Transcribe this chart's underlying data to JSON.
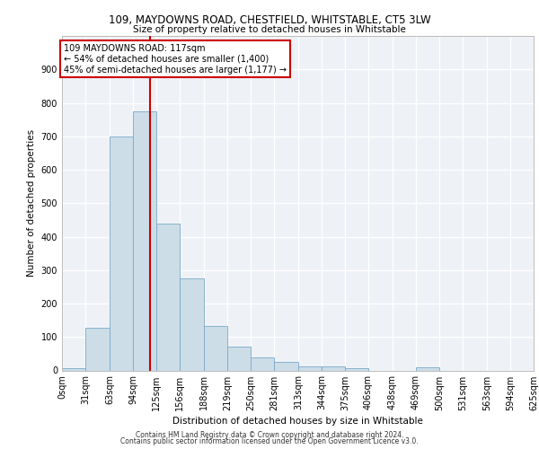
{
  "title1": "109, MAYDOWNS ROAD, CHESTFIELD, WHITSTABLE, CT5 3LW",
  "title2": "Size of property relative to detached houses in Whitstable",
  "xlabel": "Distribution of detached houses by size in Whitstable",
  "ylabel": "Number of detached properties",
  "bin_edges": [
    0,
    31,
    63,
    94,
    125,
    156,
    188,
    219,
    250,
    281,
    313,
    344,
    375,
    406,
    438,
    469,
    500,
    531,
    563,
    594,
    625
  ],
  "bar_heights": [
    8,
    128,
    700,
    775,
    440,
    275,
    133,
    70,
    40,
    25,
    13,
    12,
    8,
    0,
    0,
    10,
    0,
    0,
    0,
    0
  ],
  "bar_color": "#ccdde8",
  "bar_edge_color": "#7aaac8",
  "bg_color": "#eef2f7",
  "grid_color": "#ffffff",
  "vline_x": 117,
  "vline_color": "#cc0000",
  "annotation_text": "109 MAYDOWNS ROAD: 117sqm\n← 54% of detached houses are smaller (1,400)\n45% of semi-detached houses are larger (1,177) →",
  "annotation_box_color": "#ffffff",
  "annotation_border_color": "#cc0000",
  "ylim": [
    0,
    1000
  ],
  "yticks": [
    0,
    100,
    200,
    300,
    400,
    500,
    600,
    700,
    800,
    900,
    1000
  ],
  "tick_labels": [
    "0sqm",
    "31sqm",
    "63sqm",
    "94sqm",
    "125sqm",
    "156sqm",
    "188sqm",
    "219sqm",
    "250sqm",
    "281sqm",
    "313sqm",
    "344sqm",
    "375sqm",
    "406sqm",
    "438sqm",
    "469sqm",
    "500sqm",
    "531sqm",
    "563sqm",
    "594sqm",
    "625sqm"
  ],
  "footer1": "Contains HM Land Registry data © Crown copyright and database right 2024.",
  "footer2": "Contains public sector information licensed under the Open Government Licence v3.0."
}
